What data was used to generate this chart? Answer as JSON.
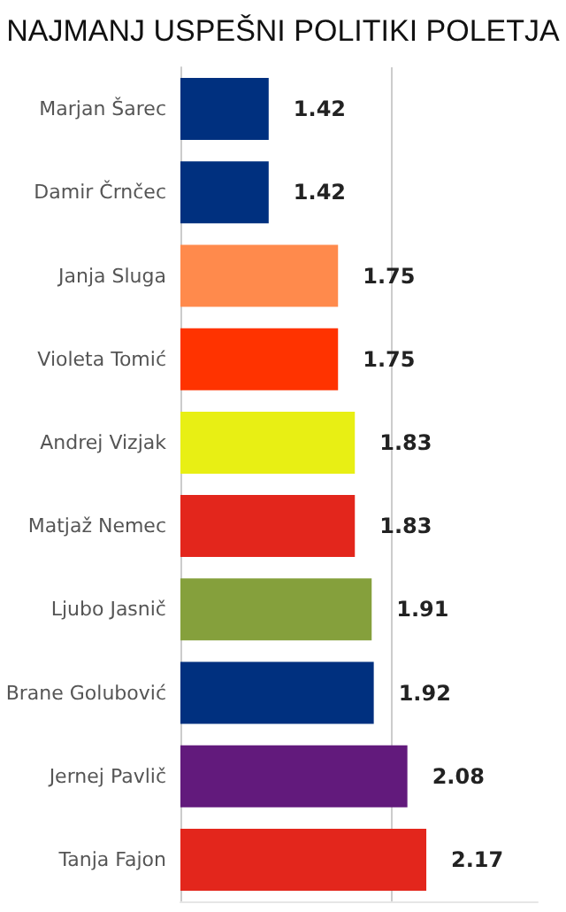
{
  "chart_data": {
    "type": "bar",
    "orientation": "horizontal",
    "title": "NAJMANJ USPEŠNI POLITIKI POLETJA",
    "categories": [
      "Marjan Šarec",
      "Damir Črnčec",
      "Janja Sluga",
      "Violeta Tomić",
      "Andrej Vizjak",
      "Matjaž Nemec",
      "Ljubo Jasnič",
      "Brane Golubović",
      "Jernej Pavlič",
      "Tanja Fajon"
    ],
    "values": [
      1.42,
      1.42,
      1.75,
      1.75,
      1.83,
      1.83,
      1.91,
      1.92,
      2.08,
      2.17
    ],
    "colors": [
      "#00307f",
      "#00307f",
      "#ff8a4c",
      "#ff3300",
      "#e8ef14",
      "#e3261c",
      "#85a03c",
      "#00307f",
      "#621a7c",
      "#e3261c"
    ],
    "xlim": [
      1,
      2.7
    ],
    "ref_lines": [
      {
        "axis": "x",
        "value": 2,
        "color": "#cccccc"
      }
    ],
    "tick_labels": "y",
    "data_labels": true
  }
}
